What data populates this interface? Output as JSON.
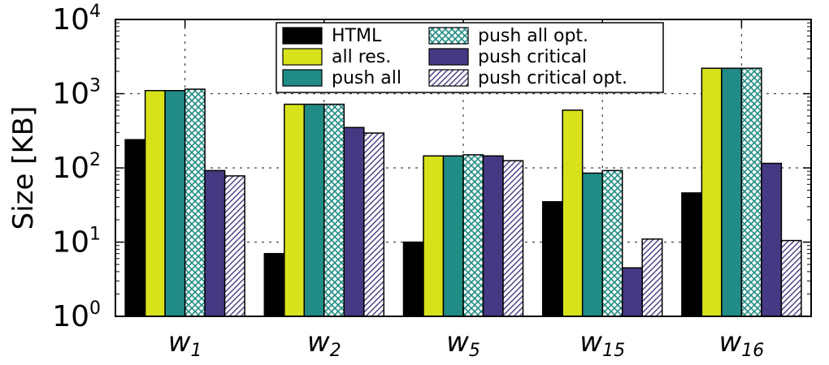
{
  "chart_data": {
    "type": "bar",
    "title": "",
    "xlabel": "",
    "ylabel": "Size [KB]",
    "yscale": "log",
    "ylim": [
      1,
      10000
    ],
    "yticks": [
      {
        "base": "10",
        "exp": "0"
      },
      {
        "base": "10",
        "exp": "1"
      },
      {
        "base": "10",
        "exp": "2"
      },
      {
        "base": "10",
        "exp": "3"
      },
      {
        "base": "10",
        "exp": "4"
      }
    ],
    "grid": true,
    "legend_position": "top-center",
    "categories": [
      {
        "base": "w",
        "sub": "1"
      },
      {
        "base": "w",
        "sub": "2"
      },
      {
        "base": "w",
        "sub": "5"
      },
      {
        "base": "w",
        "sub": "15"
      },
      {
        "base": "w",
        "sub": "16"
      }
    ],
    "series": [
      {
        "name": "HTML",
        "color": "#000000",
        "pattern": "solid",
        "values": [
          240,
          7,
          10,
          35,
          46
        ]
      },
      {
        "name": "all res.",
        "color": "#d7e21b",
        "pattern": "solid",
        "values": [
          1100,
          720,
          145,
          600,
          2200
        ]
      },
      {
        "name": "push all",
        "color": "#218c85",
        "pattern": "solid",
        "values": [
          1100,
          720,
          145,
          85,
          2200
        ]
      },
      {
        "name": "push all opt.",
        "color": "#218c85",
        "pattern": "crosshatch",
        "values": [
          1150,
          720,
          150,
          92,
          2200
        ]
      },
      {
        "name": "push critical",
        "color": "#443a83",
        "pattern": "solid",
        "values": [
          92,
          350,
          145,
          4.5,
          115
        ]
      },
      {
        "name": "push critical opt.",
        "color": "#443a83",
        "pattern": "diagonal",
        "values": [
          78,
          295,
          125,
          11,
          10.5
        ]
      }
    ]
  }
}
